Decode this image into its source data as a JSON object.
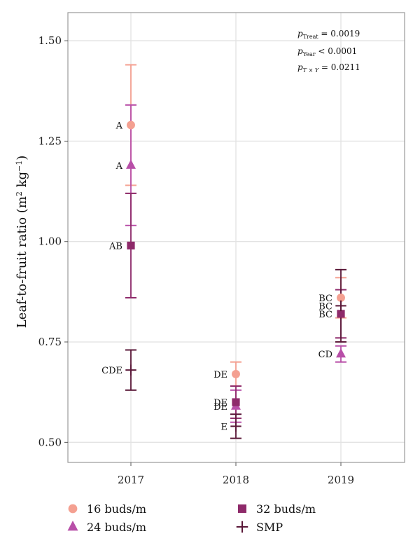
{
  "chart_data": {
    "type": "scatter",
    "categories": [
      "2017",
      "2018",
      "2019"
    ],
    "ylabel_main": "Leaf-to-fruit ratio (m",
    "ylabel_sup1": "2",
    "ylabel_mid": " kg",
    "ylabel_sup2": "−1",
    "ylabel_end": ")",
    "ylim": [
      0.45,
      1.57
    ],
    "yticks": [
      "0.50",
      "0.75",
      "1.00",
      "1.25",
      "1.50"
    ],
    "ytick_values": [
      0.5,
      0.75,
      1.0,
      1.25,
      1.5
    ],
    "grid": true,
    "stats": [
      {
        "p": "p",
        "sub": "Treat",
        "text": " = 0.0019"
      },
      {
        "p": "p",
        "sub": "Year",
        "text": " < 0.0001"
      },
      {
        "p": "p",
        "sub": "T × Y",
        "text": " = 0.0211"
      }
    ],
    "series": [
      {
        "name": "16 buds/m",
        "marker": "circle",
        "color": "#f4a091",
        "points": [
          {
            "x": "2017",
            "y": 1.29,
            "lo": 1.14,
            "hi": 1.44,
            "label": "A"
          },
          {
            "x": "2018",
            "y": 0.67,
            "lo": 0.64,
            "hi": 0.7,
            "label": "DE"
          },
          {
            "x": "2019",
            "y": 0.86,
            "lo": 0.81,
            "hi": 0.91,
            "label": "BC"
          }
        ]
      },
      {
        "name": "24 buds/m",
        "marker": "triangle",
        "color": "#b84fa8",
        "points": [
          {
            "x": "2017",
            "y": 1.19,
            "lo": 1.04,
            "hi": 1.34,
            "label": "A"
          },
          {
            "x": "2018",
            "y": 0.59,
            "lo": 0.55,
            "hi": 0.63,
            "label": "DE"
          },
          {
            "x": "2019",
            "y": 0.72,
            "lo": 0.7,
            "hi": 0.74,
            "label": "CD"
          }
        ]
      },
      {
        "name": "32 buds/m",
        "marker": "square",
        "color": "#8e2a6a",
        "points": [
          {
            "x": "2017",
            "y": 0.99,
            "lo": 0.86,
            "hi": 1.12,
            "label": "AB"
          },
          {
            "x": "2018",
            "y": 0.6,
            "lo": 0.56,
            "hi": 0.64,
            "label": "DE"
          },
          {
            "x": "2019",
            "y": 0.82,
            "lo": 0.76,
            "hi": 0.88,
            "label": "BC"
          }
        ]
      },
      {
        "name": "SMP",
        "marker": "cross",
        "color": "#5a1838",
        "points": [
          {
            "x": "2017",
            "y": 0.68,
            "lo": 0.63,
            "hi": 0.73,
            "label": "CDE"
          },
          {
            "x": "2018",
            "y": 0.54,
            "lo": 0.51,
            "hi": 0.57,
            "label": "E"
          },
          {
            "x": "2019",
            "y": 0.84,
            "lo": 0.75,
            "hi": 0.93,
            "label": "BC"
          }
        ]
      }
    ]
  }
}
